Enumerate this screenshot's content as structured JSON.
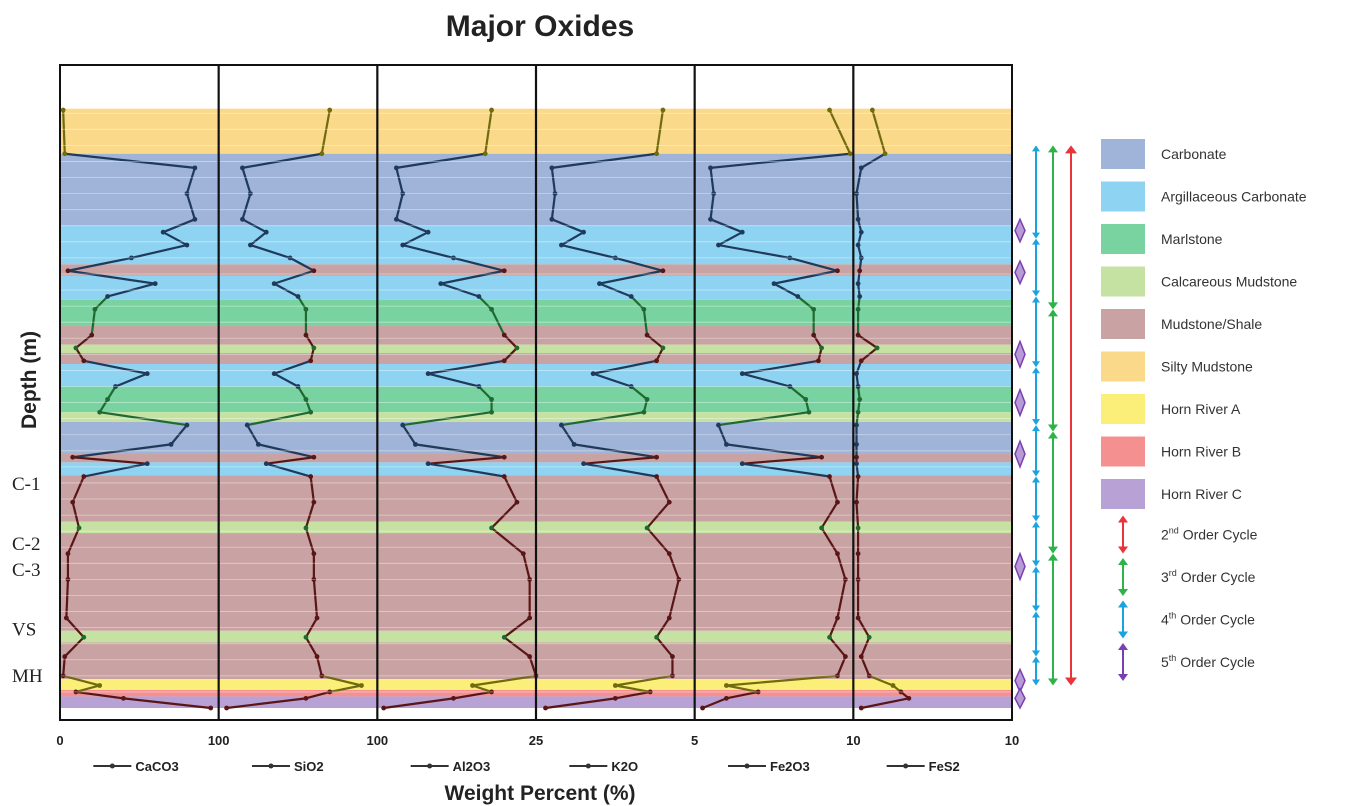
{
  "colors": {
    "carbonate": "#9fb4d8",
    "argillaceous": "#8fd3f3",
    "marlstone": "#79d3a0",
    "calcareous": "#c6e2a3",
    "mudstone": "#c9a3a3",
    "silty": "#fbd98a",
    "hornA": "#fbef7a",
    "hornB": "#f49090",
    "hornC": "#b8a1d4",
    "cycle2": "#e8343a",
    "cycle3": "#2db34a",
    "cycle4": "#1ba3e0",
    "cycle5": "#7a3fb0",
    "lineDark": "#1f3a5a",
    "lineGreen": "#1f6a30",
    "lineOlive": "#706a10",
    "lineBrown": "#5a1616"
  },
  "chart_data": {
    "type": "line",
    "title": "Major Oxides",
    "xlabel": "Weight Percent (%)",
    "ylabel": "Depth (m)",
    "orientation": "vertical-depth-log",
    "grid": true,
    "tracks": [
      {
        "name": "CaCO3",
        "xlim": [
          0,
          100
        ],
        "tick_left": "0",
        "tick_right": "100"
      },
      {
        "name": "SiO2",
        "xlim": [
          0,
          100
        ],
        "tick_left": "100",
        "tick_right": "100"
      },
      {
        "name": "Al2O3",
        "xlim": [
          0,
          25
        ],
        "tick_left": "100",
        "tick_right": "25"
      },
      {
        "name": "K2O",
        "xlim": [
          0,
          5
        ],
        "tick_left": "25",
        "tick_right": "5"
      },
      {
        "name": "Fe2O3",
        "xlim": [
          0,
          10
        ],
        "tick_left": "5",
        "tick_right": "10"
      },
      {
        "name": "FeS2",
        "xlim": [
          0,
          10
        ],
        "tick_left": "10",
        "tick_right": "10"
      }
    ],
    "depth_markers": [
      "C-1",
      "C-2",
      "C-3",
      "VS",
      "MH"
    ],
    "legend": {
      "placement": "right",
      "facies": [
        {
          "key": "carbonate",
          "label": "Carbonate"
        },
        {
          "key": "argillaceous",
          "label": "Argillaceous Carbonate"
        },
        {
          "key": "marlstone",
          "label": "Marlstone"
        },
        {
          "key": "calcareous",
          "label": "Calcareous Mudstone"
        },
        {
          "key": "mudstone",
          "label": "Mudstone/Shale"
        },
        {
          "key": "silty",
          "label": "Silty Mudstone"
        },
        {
          "key": "hornA",
          "label": "Horn River A"
        },
        {
          "key": "hornB",
          "label": "Horn River B"
        },
        {
          "key": "hornC",
          "label": "Horn River C"
        }
      ],
      "cycles": [
        {
          "key": "cycle2",
          "num": "2",
          "sup": "nd",
          "rest": " Order Cycle"
        },
        {
          "key": "cycle3",
          "num": "3",
          "sup": "rd",
          "rest": " Order Cycle"
        },
        {
          "key": "cycle4",
          "num": "4",
          "sup": "th",
          "rest": " Order Cycle"
        },
        {
          "key": "cycle5",
          "num": "5",
          "sup": "th",
          "rest": " Order Cycle"
        }
      ]
    },
    "facies_column": [
      {
        "from": 0.0,
        "to": 0.068,
        "facies": "none"
      },
      {
        "from": 0.068,
        "to": 0.138,
        "facies": "silty"
      },
      {
        "from": 0.138,
        "to": 0.25,
        "facies": "carbonate"
      },
      {
        "from": 0.25,
        "to": 0.31,
        "facies": "argillaceous"
      },
      {
        "from": 0.31,
        "to": 0.328,
        "facies": "mudstone"
      },
      {
        "from": 0.328,
        "to": 0.365,
        "facies": "argillaceous"
      },
      {
        "from": 0.365,
        "to": 0.405,
        "facies": "marlstone"
      },
      {
        "from": 0.405,
        "to": 0.435,
        "facies": "mudstone"
      },
      {
        "from": 0.435,
        "to": 0.448,
        "facies": "calcareous"
      },
      {
        "from": 0.448,
        "to": 0.465,
        "facies": "mudstone"
      },
      {
        "from": 0.465,
        "to": 0.5,
        "facies": "argillaceous"
      },
      {
        "from": 0.5,
        "to": 0.54,
        "facies": "marlstone"
      },
      {
        "from": 0.54,
        "to": 0.555,
        "facies": "calcareous"
      },
      {
        "from": 0.555,
        "to": 0.605,
        "facies": "carbonate"
      },
      {
        "from": 0.605,
        "to": 0.618,
        "facies": "mudstone"
      },
      {
        "from": 0.618,
        "to": 0.638,
        "facies": "argillaceous"
      },
      {
        "from": 0.638,
        "to": 0.71,
        "facies": "mudstone"
      },
      {
        "from": 0.71,
        "to": 0.728,
        "facies": "calcareous"
      },
      {
        "from": 0.728,
        "to": 0.88,
        "facies": "mudstone"
      },
      {
        "from": 0.88,
        "to": 0.898,
        "facies": "calcareous"
      },
      {
        "from": 0.898,
        "to": 0.955,
        "facies": "mudstone"
      },
      {
        "from": 0.955,
        "to": 0.972,
        "facies": "hornA"
      },
      {
        "from": 0.972,
        "to": 0.982,
        "facies": "hornB"
      },
      {
        "from": 0.982,
        "to": 1.0,
        "facies": "hornC"
      }
    ],
    "series": [
      {
        "name": "CaCO3",
        "points": [
          [
            0.07,
            2
          ],
          [
            0.138,
            3
          ],
          [
            0.16,
            85
          ],
          [
            0.2,
            80
          ],
          [
            0.24,
            85
          ],
          [
            0.26,
            65
          ],
          [
            0.28,
            80
          ],
          [
            0.3,
            45
          ],
          [
            0.32,
            5
          ],
          [
            0.34,
            60
          ],
          [
            0.36,
            30
          ],
          [
            0.38,
            22
          ],
          [
            0.42,
            20
          ],
          [
            0.44,
            10
          ],
          [
            0.46,
            15
          ],
          [
            0.48,
            55
          ],
          [
            0.5,
            35
          ],
          [
            0.52,
            30
          ],
          [
            0.54,
            25
          ],
          [
            0.56,
            80
          ],
          [
            0.59,
            70
          ],
          [
            0.61,
            8
          ],
          [
            0.62,
            55
          ],
          [
            0.64,
            15
          ],
          [
            0.68,
            8
          ],
          [
            0.72,
            12
          ],
          [
            0.76,
            5
          ],
          [
            0.8,
            5
          ],
          [
            0.86,
            4
          ],
          [
            0.89,
            15
          ],
          [
            0.92,
            3
          ],
          [
            0.95,
            2
          ],
          [
            0.965,
            25
          ],
          [
            0.975,
            10
          ],
          [
            0.985,
            40
          ],
          [
            1.0,
            95
          ]
        ]
      },
      {
        "name": "SiO2",
        "points": [
          [
            0.07,
            70
          ],
          [
            0.138,
            65
          ],
          [
            0.16,
            15
          ],
          [
            0.2,
            20
          ],
          [
            0.24,
            15
          ],
          [
            0.26,
            30
          ],
          [
            0.28,
            20
          ],
          [
            0.3,
            45
          ],
          [
            0.32,
            60
          ],
          [
            0.34,
            35
          ],
          [
            0.36,
            50
          ],
          [
            0.38,
            55
          ],
          [
            0.42,
            55
          ],
          [
            0.44,
            60
          ],
          [
            0.46,
            58
          ],
          [
            0.48,
            35
          ],
          [
            0.5,
            50
          ],
          [
            0.52,
            55
          ],
          [
            0.54,
            58
          ],
          [
            0.56,
            18
          ],
          [
            0.59,
            25
          ],
          [
            0.61,
            60
          ],
          [
            0.62,
            30
          ],
          [
            0.64,
            58
          ],
          [
            0.68,
            60
          ],
          [
            0.72,
            55
          ],
          [
            0.76,
            60
          ],
          [
            0.8,
            60
          ],
          [
            0.86,
            62
          ],
          [
            0.89,
            55
          ],
          [
            0.92,
            62
          ],
          [
            0.95,
            65
          ],
          [
            0.965,
            90
          ],
          [
            0.975,
            70
          ],
          [
            0.985,
            55
          ],
          [
            1.0,
            5
          ]
        ]
      },
      {
        "name": "Al2O3",
        "points": [
          [
            0.07,
            18
          ],
          [
            0.138,
            17
          ],
          [
            0.16,
            3
          ],
          [
            0.2,
            4
          ],
          [
            0.24,
            3
          ],
          [
            0.26,
            8
          ],
          [
            0.28,
            4
          ],
          [
            0.3,
            12
          ],
          [
            0.32,
            20
          ],
          [
            0.34,
            10
          ],
          [
            0.36,
            16
          ],
          [
            0.38,
            18
          ],
          [
            0.42,
            20
          ],
          [
            0.44,
            22
          ],
          [
            0.46,
            20
          ],
          [
            0.48,
            8
          ],
          [
            0.5,
            16
          ],
          [
            0.52,
            18
          ],
          [
            0.54,
            18
          ],
          [
            0.56,
            4
          ],
          [
            0.59,
            6
          ],
          [
            0.61,
            20
          ],
          [
            0.62,
            8
          ],
          [
            0.64,
            20
          ],
          [
            0.68,
            22
          ],
          [
            0.72,
            18
          ],
          [
            0.76,
            23
          ],
          [
            0.8,
            24
          ],
          [
            0.86,
            24
          ],
          [
            0.89,
            20
          ],
          [
            0.92,
            24
          ],
          [
            0.95,
            25
          ],
          [
            0.965,
            15
          ],
          [
            0.975,
            18
          ],
          [
            0.985,
            12
          ],
          [
            1.0,
            1
          ]
        ]
      },
      {
        "name": "K2O",
        "points": [
          [
            0.07,
            4
          ],
          [
            0.138,
            3.8
          ],
          [
            0.16,
            0.5
          ],
          [
            0.2,
            0.6
          ],
          [
            0.24,
            0.5
          ],
          [
            0.26,
            1.5
          ],
          [
            0.28,
            0.8
          ],
          [
            0.3,
            2.5
          ],
          [
            0.32,
            4
          ],
          [
            0.34,
            2
          ],
          [
            0.36,
            3
          ],
          [
            0.38,
            3.4
          ],
          [
            0.42,
            3.5
          ],
          [
            0.44,
            4
          ],
          [
            0.46,
            3.8
          ],
          [
            0.48,
            1.8
          ],
          [
            0.5,
            3
          ],
          [
            0.52,
            3.5
          ],
          [
            0.54,
            3.4
          ],
          [
            0.56,
            0.8
          ],
          [
            0.59,
            1.2
          ],
          [
            0.61,
            3.8
          ],
          [
            0.62,
            1.5
          ],
          [
            0.64,
            3.8
          ],
          [
            0.68,
            4.2
          ],
          [
            0.72,
            3.5
          ],
          [
            0.76,
            4.2
          ],
          [
            0.8,
            4.5
          ],
          [
            0.86,
            4.2
          ],
          [
            0.89,
            3.8
          ],
          [
            0.92,
            4.3
          ],
          [
            0.95,
            4.3
          ],
          [
            0.965,
            2.5
          ],
          [
            0.975,
            3.6
          ],
          [
            0.985,
            2.5
          ],
          [
            1.0,
            0.3
          ]
        ]
      },
      {
        "name": "Fe2O3",
        "points": [
          [
            0.07,
            8.5
          ],
          [
            0.138,
            9.8
          ],
          [
            0.16,
            1
          ],
          [
            0.2,
            1.2
          ],
          [
            0.24,
            1
          ],
          [
            0.26,
            3
          ],
          [
            0.28,
            1.5
          ],
          [
            0.3,
            6
          ],
          [
            0.32,
            9
          ],
          [
            0.34,
            5
          ],
          [
            0.36,
            6.5
          ],
          [
            0.38,
            7.5
          ],
          [
            0.42,
            7.5
          ],
          [
            0.44,
            8
          ],
          [
            0.46,
            7.8
          ],
          [
            0.48,
            3
          ],
          [
            0.5,
            6
          ],
          [
            0.52,
            7
          ],
          [
            0.54,
            7.2
          ],
          [
            0.56,
            1.5
          ],
          [
            0.59,
            2
          ],
          [
            0.61,
            8
          ],
          [
            0.62,
            3
          ],
          [
            0.64,
            8.5
          ],
          [
            0.68,
            9
          ],
          [
            0.72,
            8
          ],
          [
            0.76,
            9
          ],
          [
            0.8,
            9.5
          ],
          [
            0.86,
            9
          ],
          [
            0.89,
            8.5
          ],
          [
            0.92,
            9.5
          ],
          [
            0.95,
            9
          ],
          [
            0.965,
            2
          ],
          [
            0.975,
            4
          ],
          [
            0.985,
            2
          ],
          [
            1.0,
            0.5
          ]
        ]
      },
      {
        "name": "FeS2",
        "points": [
          [
            0.07,
            1.2
          ],
          [
            0.138,
            2
          ],
          [
            0.16,
            0.5
          ],
          [
            0.2,
            0.2
          ],
          [
            0.24,
            0.3
          ],
          [
            0.26,
            0.5
          ],
          [
            0.28,
            0.3
          ],
          [
            0.3,
            0.5
          ],
          [
            0.32,
            0.4
          ],
          [
            0.34,
            0.3
          ],
          [
            0.36,
            0.4
          ],
          [
            0.38,
            0.3
          ],
          [
            0.42,
            0.3
          ],
          [
            0.44,
            1.5
          ],
          [
            0.46,
            0.5
          ],
          [
            0.48,
            0.2
          ],
          [
            0.5,
            0.3
          ],
          [
            0.52,
            0.4
          ],
          [
            0.54,
            0.3
          ],
          [
            0.56,
            0.2
          ],
          [
            0.59,
            0.2
          ],
          [
            0.61,
            0.2
          ],
          [
            0.62,
            0.2
          ],
          [
            0.64,
            0.3
          ],
          [
            0.68,
            0.2
          ],
          [
            0.72,
            0.3
          ],
          [
            0.76,
            0.3
          ],
          [
            0.8,
            0.3
          ],
          [
            0.86,
            0.3
          ],
          [
            0.89,
            1
          ],
          [
            0.92,
            0.5
          ],
          [
            0.95,
            1
          ],
          [
            0.965,
            2.5
          ],
          [
            0.975,
            3
          ],
          [
            0.985,
            3.5
          ],
          [
            1.0,
            0.5
          ]
        ]
      }
    ]
  }
}
